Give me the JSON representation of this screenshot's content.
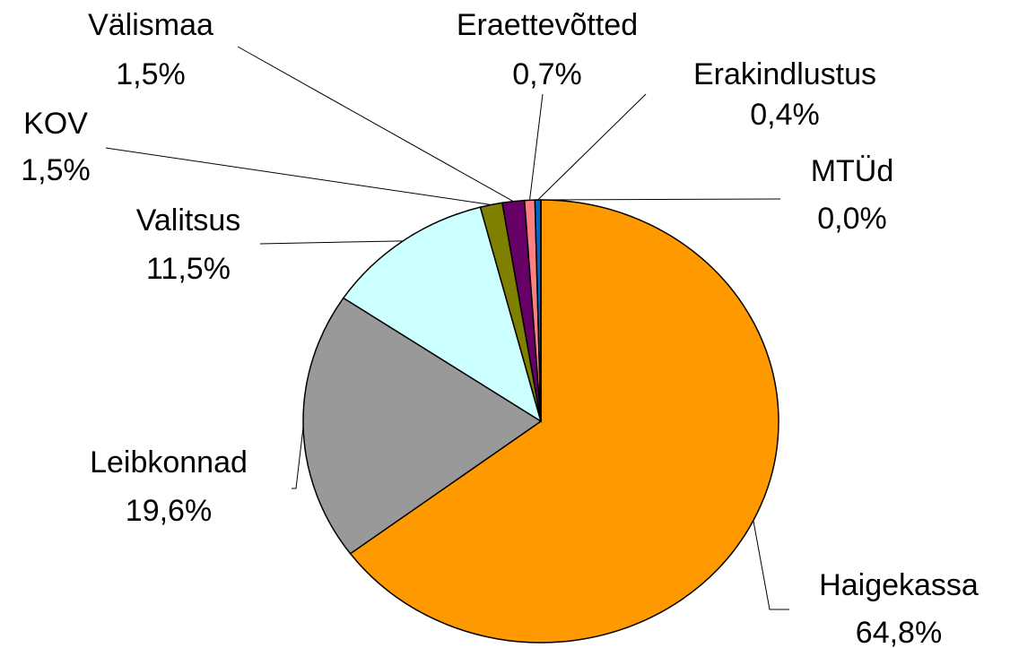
{
  "chart_data": {
    "type": "pie",
    "categories": [
      "Haigekassa",
      "Leibkonnad",
      "Valitsus",
      "KOV",
      "Välismaa",
      "Eraettevõtted",
      "Erakindlustus",
      "MTÜd"
    ],
    "values": [
      64.8,
      19.6,
      11.5,
      1.5,
      1.5,
      0.7,
      0.4,
      0.0
    ],
    "value_labels": [
      "64,8%",
      "19,6%",
      "11,5%",
      "1,5%",
      "1,5%",
      "0,7%",
      "0,4%",
      "0,0%"
    ],
    "colors": [
      "#ff9900",
      "#999999",
      "#ccffff",
      "#808000",
      "#660066",
      "#ff8080",
      "#0066cc",
      "#ccccff"
    ]
  }
}
